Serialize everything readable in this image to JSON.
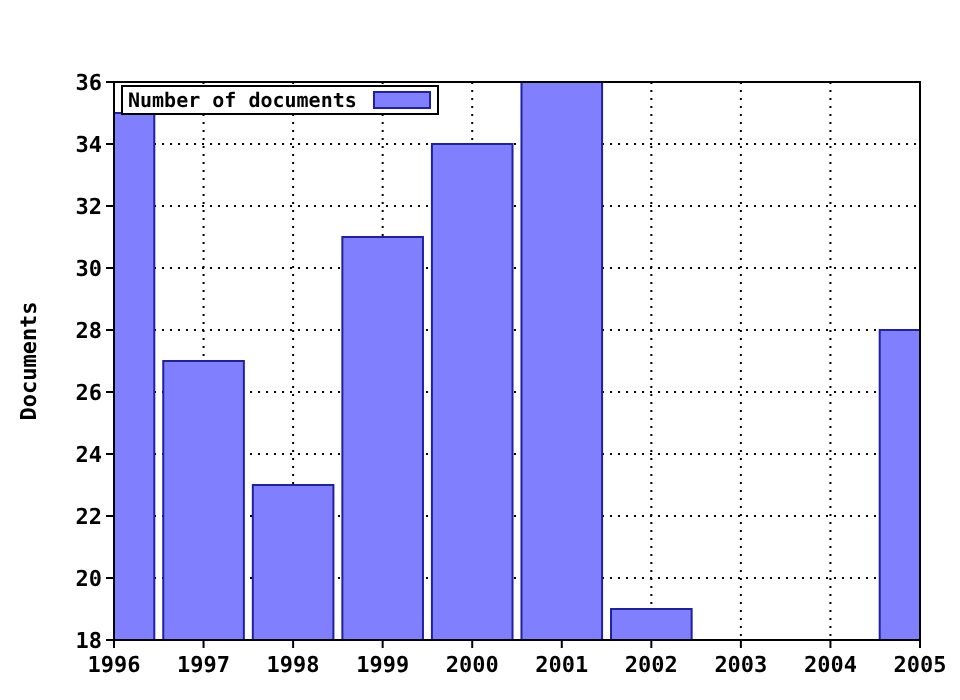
{
  "chart_data": {
    "type": "bar",
    "ylabel": "Documents",
    "x": [
      1996,
      1997,
      1998,
      1999,
      2000,
      2001,
      2002,
      2003,
      2004,
      2005
    ],
    "series": [
      {
        "name": "Number of documents",
        "color": "#8080ff",
        "values": [
          35,
          27,
          23,
          31,
          34,
          36,
          19,
          null,
          null,
          28
        ]
      }
    ],
    "xlim": [
      1996,
      2005
    ],
    "xticks": [
      1996,
      1997,
      1998,
      1999,
      2000,
      2001,
      2002,
      2003,
      2004,
      2005
    ],
    "ylim": [
      18,
      36
    ],
    "yticks": [
      18,
      20,
      22,
      24,
      26,
      28,
      30,
      32,
      34,
      36
    ],
    "grid": true,
    "line_style": "dotted",
    "legend": "top left"
  }
}
